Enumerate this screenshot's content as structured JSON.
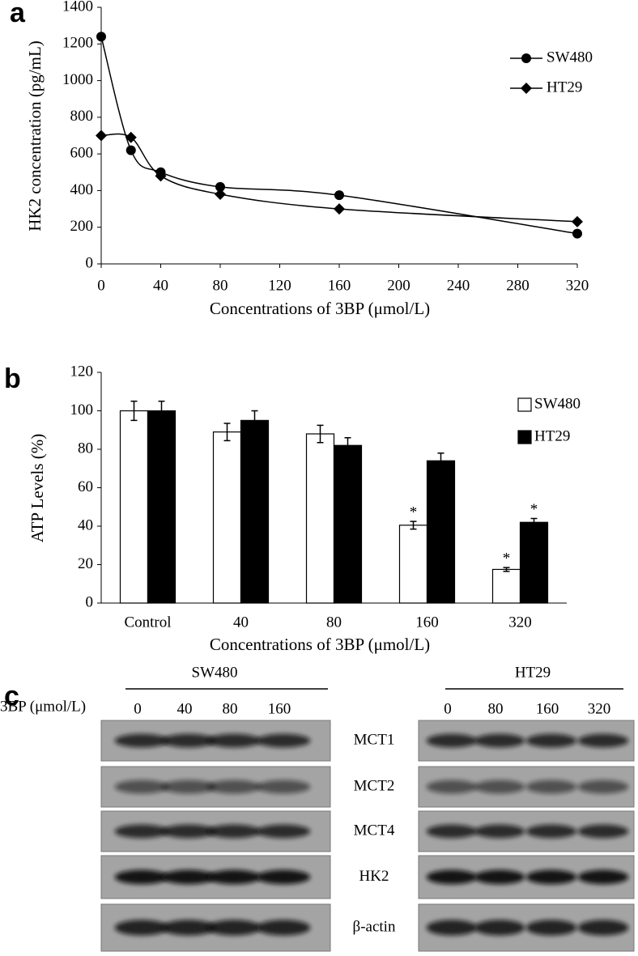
{
  "chart_data": [
    {
      "type": "line",
      "panel_label": "a",
      "x_label": "Concentrations of  3BP (μmol/L)",
      "y_label": "HK2 concentration (pg/mL)",
      "x": [
        0,
        20,
        40,
        80,
        160,
        320
      ],
      "series": [
        {
          "name": "SW480",
          "color": "#000000",
          "marker": "circle",
          "values": [
            1240,
            620,
            500,
            420,
            375,
            165
          ]
        },
        {
          "name": "HT29",
          "color": "#000000",
          "marker": "diamond",
          "values": [
            700,
            690,
            480,
            380,
            300,
            230
          ]
        }
      ],
      "xlim": [
        0,
        320
      ],
      "xticks": [
        0,
        40,
        80,
        120,
        160,
        200,
        240,
        280,
        320
      ],
      "ylim": [
        0,
        1400
      ],
      "yticks": [
        0,
        200,
        400,
        600,
        800,
        1000,
        1200,
        1400
      ],
      "smooth": true,
      "legend": "upper right"
    },
    {
      "type": "bar",
      "panel_label": "b",
      "x_label": "Concentrations of  3BP (μmol/L)",
      "y_label": "ATP Levels (%)",
      "categories": [
        "Control",
        "40",
        "80",
        "160",
        "320"
      ],
      "series": [
        {
          "name": "SW480",
          "color": "#ffffff",
          "values": [
            100,
            89,
            88,
            40.5,
            17.5
          ],
          "errors": [
            5,
            4.5,
            4.5,
            2,
            1
          ],
          "significance": [
            null,
            null,
            null,
            "*",
            "*"
          ]
        },
        {
          "name": "HT29",
          "color": "#000000",
          "values": [
            100,
            95,
            82,
            74,
            42
          ],
          "errors": [
            5,
            5,
            4,
            4,
            2
          ],
          "significance": [
            null,
            null,
            null,
            null,
            "*"
          ]
        }
      ],
      "ylim": [
        0,
        120
      ],
      "yticks": [
        0,
        20,
        40,
        60,
        80,
        100,
        120
      ],
      "legend": "upper right"
    }
  ],
  "blot": {
    "panel_label": "c",
    "treatment_label": "3BP (μmol/L)",
    "groups": [
      {
        "name": "SW480",
        "lanes": [
          "0",
          "40",
          "80",
          "160"
        ]
      },
      {
        "name": "HT29",
        "lanes": [
          "0",
          "80",
          "160",
          "320"
        ]
      }
    ],
    "proteins": [
      "MCT1",
      "MCT2",
      "MCT4",
      "HK2",
      "β-actin"
    ]
  }
}
